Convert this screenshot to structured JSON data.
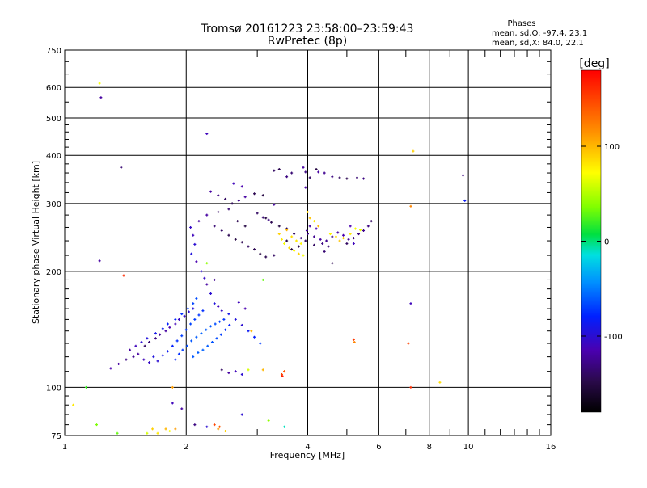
{
  "chart_data": {
    "type": "scatter",
    "title": "Tromsø 20161223 23:58:00–23:59:43",
    "subtitle": "RwPretec (8p)",
    "xlabel": "Frequency [MHz]",
    "ylabel": "Stationary phase Virtual Height [km]",
    "x_scale": "log",
    "y_scale": "log",
    "xlim": [
      1,
      16
    ],
    "ylim": [
      75,
      750
    ],
    "x_ticks": [
      1,
      2,
      4,
      6,
      8,
      10,
      16
    ],
    "x_ticks_labels": [
      "1",
      "2",
      "4",
      "6",
      "8",
      "10",
      "16"
    ],
    "x_minor_ticks": [
      3,
      5,
      7,
      9,
      11,
      12,
      13,
      14,
      15
    ],
    "y_ticks": [
      75,
      100,
      200,
      300,
      400,
      500,
      600,
      750
    ],
    "y_ticks_labels": [
      "75",
      "100",
      "200",
      "300",
      "400",
      "500",
      "600",
      "750"
    ],
    "grid": true,
    "stats": {
      "heading": "Phases",
      "line_o": "mean, sd,O: -97.4, 23.1",
      "line_x": "mean, sd,X: 84.0, 22.1"
    },
    "colorbar": {
      "label": "[deg]",
      "range": [
        -180,
        180
      ],
      "ticks": [
        100,
        0,
        -100
      ],
      "tick_labels": [
        "100",
        "0",
        "-100"
      ]
    },
    "points_note": "each point: [frequency MHz, virtual height km, phase deg]",
    "points": [
      [
        1.22,
        615,
        70
      ],
      [
        1.23,
        565,
        -120
      ],
      [
        1.38,
        372,
        -135
      ],
      [
        1.22,
        213,
        -120
      ],
      [
        1.4,
        195,
        160
      ],
      [
        2.25,
        455,
        -110
      ],
      [
        1.05,
        90,
        80
      ],
      [
        1.13,
        100,
        20
      ],
      [
        1.2,
        80,
        35
      ],
      [
        7.3,
        410,
        90
      ],
      [
        7.2,
        295,
        120
      ],
      [
        9.7,
        355,
        -130
      ],
      [
        9.8,
        305,
        -85
      ],
      [
        7.2,
        165,
        -110
      ],
      [
        7.1,
        130,
        150
      ],
      [
        7.2,
        100,
        160
      ],
      [
        8.5,
        103,
        85
      ],
      [
        2.05,
        260,
        -105
      ],
      [
        2.08,
        248,
        -110
      ],
      [
        2.1,
        235,
        -100
      ],
      [
        2.06,
        222,
        -95
      ],
      [
        2.12,
        212,
        -115
      ],
      [
        2.15,
        270,
        -120
      ],
      [
        2.18,
        200,
        -100
      ],
      [
        2.22,
        192,
        -105
      ],
      [
        2.25,
        280,
        -120
      ],
      [
        2.35,
        262,
        -135
      ],
      [
        2.45,
        255,
        -140
      ],
      [
        2.55,
        248,
        -145
      ],
      [
        2.65,
        242,
        -150
      ],
      [
        2.75,
        238,
        -145
      ],
      [
        2.85,
        232,
        -140
      ],
      [
        2.95,
        228,
        -145
      ],
      [
        3.05,
        222,
        -150
      ],
      [
        3.15,
        218,
        -145
      ],
      [
        3.3,
        220,
        -140
      ],
      [
        2.3,
        322,
        -120
      ],
      [
        2.4,
        315,
        -130
      ],
      [
        2.5,
        308,
        -140
      ],
      [
        2.6,
        300,
        -145
      ],
      [
        2.7,
        305,
        -125
      ],
      [
        2.8,
        312,
        -120
      ],
      [
        2.62,
        338,
        -110
      ],
      [
        2.75,
        332,
        -115
      ],
      [
        2.95,
        318,
        -145
      ],
      [
        3.1,
        315,
        -150
      ],
      [
        3.3,
        298,
        -120
      ],
      [
        2.4,
        285,
        -140
      ],
      [
        2.55,
        290,
        -135
      ],
      [
        2.68,
        270,
        -145
      ],
      [
        2.8,
        262,
        -150
      ],
      [
        3.15,
        275,
        -150
      ],
      [
        3.25,
        268,
        -145
      ],
      [
        3.4,
        262,
        -150
      ],
      [
        3.55,
        258,
        -145
      ],
      [
        3.7,
        250,
        -140
      ],
      [
        3.85,
        244,
        -130
      ],
      [
        3.95,
        240,
        -140
      ],
      [
        3.55,
        240,
        -150
      ],
      [
        3.65,
        228,
        -155
      ],
      [
        3.8,
        232,
        -150
      ],
      [
        3.3,
        365,
        -140
      ],
      [
        3.4,
        368,
        -145
      ],
      [
        3.55,
        352,
        -130
      ],
      [
        3.65,
        360,
        -135
      ],
      [
        3.9,
        372,
        -120
      ],
      [
        3.95,
        362,
        -130
      ],
      [
        4.05,
        350,
        -140
      ],
      [
        3.95,
        330,
        -120
      ],
      [
        4.25,
        362,
        -120
      ],
      [
        4.4,
        360,
        -125
      ],
      [
        4.6,
        352,
        -130
      ],
      [
        4.8,
        350,
        -140
      ],
      [
        5.0,
        348,
        -145
      ],
      [
        5.3,
        350,
        -135
      ],
      [
        5.5,
        348,
        -130
      ],
      [
        4.2,
        368,
        -150
      ],
      [
        3.4,
        250,
        90
      ],
      [
        3.45,
        242,
        80
      ],
      [
        3.5,
        236,
        70
      ],
      [
        3.6,
        230,
        85
      ],
      [
        3.7,
        226,
        75
      ],
      [
        3.8,
        222,
        90
      ],
      [
        3.9,
        220,
        70
      ],
      [
        3.55,
        256,
        100
      ],
      [
        3.65,
        246,
        85
      ],
      [
        3.75,
        240,
        80
      ],
      [
        3.85,
        236,
        75
      ],
      [
        4.0,
        285,
        90
      ],
      [
        4.05,
        275,
        95
      ],
      [
        4.15,
        270,
        80
      ],
      [
        4.25,
        262,
        100
      ],
      [
        4.55,
        250,
        75
      ],
      [
        4.7,
        246,
        85
      ],
      [
        4.9,
        244,
        90
      ],
      [
        5.1,
        250,
        80
      ],
      [
        5.25,
        258,
        70
      ],
      [
        5.4,
        256,
        65
      ],
      [
        4.8,
        240,
        95
      ],
      [
        4.0,
        250,
        -130
      ],
      [
        4.15,
        246,
        -125
      ],
      [
        4.3,
        242,
        -120
      ],
      [
        4.45,
        240,
        -125
      ],
      [
        4.6,
        246,
        -130
      ],
      [
        4.75,
        252,
        -120
      ],
      [
        4.9,
        248,
        -115
      ],
      [
        5.05,
        242,
        -125
      ],
      [
        5.2,
        244,
        -135
      ],
      [
        5.35,
        250,
        -130
      ],
      [
        5.5,
        255,
        -125
      ],
      [
        5.65,
        262,
        -130
      ],
      [
        5.75,
        270,
        -140
      ],
      [
        4.05,
        262,
        -120
      ],
      [
        4.2,
        258,
        -115
      ],
      [
        4.35,
        236,
        -130
      ],
      [
        4.5,
        232,
        -135
      ],
      [
        5.0,
        236,
        -140
      ],
      [
        4.6,
        210,
        -145
      ],
      [
        3.98,
        255,
        -120
      ],
      [
        4.15,
        234,
        -140
      ],
      [
        4.4,
        225,
        -135
      ],
      [
        5.1,
        262,
        -115
      ],
      [
        5.2,
        236,
        -110
      ],
      [
        3.0,
        283,
        -140
      ],
      [
        3.1,
        276,
        -135
      ],
      [
        3.2,
        272,
        -130
      ],
      [
        1.3,
        112,
        -115
      ],
      [
        1.36,
        115,
        -120
      ],
      [
        1.42,
        118,
        -130
      ],
      [
        1.48,
        120,
        -125
      ],
      [
        1.52,
        122,
        -120
      ],
      [
        1.57,
        118,
        -110
      ],
      [
        1.62,
        116,
        -105
      ],
      [
        1.66,
        120,
        -95
      ],
      [
        1.7,
        117,
        -100
      ],
      [
        1.75,
        121,
        -90
      ],
      [
        1.8,
        124,
        -85
      ],
      [
        1.85,
        128,
        -80
      ],
      [
        1.9,
        132,
        -75
      ],
      [
        1.95,
        136,
        -70
      ],
      [
        2.0,
        141,
        -72
      ],
      [
        2.05,
        146,
        -68
      ],
      [
        2.1,
        150,
        -70
      ],
      [
        2.15,
        154,
        -72
      ],
      [
        2.2,
        158,
        -75
      ],
      [
        1.45,
        125,
        -120
      ],
      [
        1.5,
        128,
        -110
      ],
      [
        1.55,
        131,
        -100
      ],
      [
        1.6,
        134,
        -95
      ],
      [
        1.68,
        138,
        -90
      ],
      [
        1.75,
        142,
        -85
      ],
      [
        1.8,
        146,
        -80
      ],
      [
        1.88,
        150,
        -78
      ],
      [
        1.95,
        155,
        -75
      ],
      [
        2.02,
        160,
        -70
      ],
      [
        2.08,
        165,
        -68
      ],
      [
        2.12,
        170,
        -65
      ],
      [
        1.58,
        128,
        -140
      ],
      [
        1.62,
        131,
        -135
      ],
      [
        1.68,
        134,
        -130
      ],
      [
        1.72,
        137,
        -125
      ],
      [
        1.78,
        140,
        -120
      ],
      [
        1.82,
        143,
        -115
      ],
      [
        1.88,
        146,
        -112
      ],
      [
        1.92,
        150,
        -108
      ],
      [
        1.98,
        153,
        -104
      ],
      [
        2.03,
        157,
        -100
      ],
      [
        2.08,
        160,
        -98
      ],
      [
        1.88,
        118,
        -80
      ],
      [
        1.92,
        122,
        -75
      ],
      [
        1.96,
        125,
        -70
      ],
      [
        2.01,
        128,
        -65
      ],
      [
        2.06,
        132,
        -62
      ],
      [
        2.12,
        135,
        -60
      ],
      [
        2.18,
        138,
        -58
      ],
      [
        2.24,
        141,
        -60
      ],
      [
        2.3,
        144,
        -62
      ],
      [
        2.36,
        146,
        -65
      ],
      [
        2.42,
        148,
        -68
      ],
      [
        2.48,
        150,
        -72
      ],
      [
        2.08,
        120,
        -62
      ],
      [
        2.14,
        123,
        -60
      ],
      [
        2.2,
        125,
        -58
      ],
      [
        2.26,
        128,
        -60
      ],
      [
        2.32,
        131,
        -63
      ],
      [
        2.38,
        134,
        -66
      ],
      [
        2.44,
        137,
        -70
      ],
      [
        2.5,
        141,
        -75
      ],
      [
        2.56,
        145,
        -80
      ],
      [
        2.3,
        175,
        -100
      ],
      [
        2.35,
        165,
        -95
      ],
      [
        2.4,
        162,
        -110
      ],
      [
        2.45,
        158,
        -105
      ],
      [
        2.55,
        155,
        -90
      ],
      [
        2.65,
        150,
        -95
      ],
      [
        2.75,
        145,
        -100
      ],
      [
        2.85,
        140,
        -85
      ],
      [
        2.95,
        135,
        -80
      ],
      [
        3.05,
        130,
        -70
      ],
      [
        2.7,
        166,
        -110
      ],
      [
        2.8,
        160,
        -115
      ],
      [
        2.25,
        185,
        -120
      ],
      [
        2.35,
        190,
        -125
      ],
      [
        2.45,
        111,
        -140
      ],
      [
        2.55,
        109,
        -120
      ],
      [
        2.65,
        110,
        -110
      ],
      [
        2.75,
        108,
        -100
      ],
      [
        2.85,
        111,
        60
      ],
      [
        3.1,
        111,
        100
      ],
      [
        3.45,
        108,
        150
      ],
      [
        3.46,
        107,
        165
      ],
      [
        3.5,
        110,
        140
      ],
      [
        5.2,
        133,
        155
      ],
      [
        5.22,
        131,
        120
      ],
      [
        1.85,
        91,
        -110
      ],
      [
        1.95,
        88,
        -120
      ],
      [
        2.1,
        80,
        -130
      ],
      [
        2.25,
        79,
        -100
      ],
      [
        2.35,
        80,
        150
      ],
      [
        2.4,
        78,
        110
      ],
      [
        2.42,
        79,
        140
      ],
      [
        2.5,
        77,
        90
      ],
      [
        1.65,
        78,
        90
      ],
      [
        1.7,
        76,
        80
      ],
      [
        1.78,
        78,
        100
      ],
      [
        1.82,
        77,
        70
      ],
      [
        1.88,
        78,
        110
      ],
      [
        1.6,
        76,
        60
      ],
      [
        2.75,
        85,
        -100
      ],
      [
        3.2,
        82,
        40
      ],
      [
        3.5,
        79,
        -10
      ],
      [
        1.35,
        76,
        30
      ],
      [
        1.85,
        100,
        110
      ],
      [
        2.9,
        140,
        100
      ],
      [
        3.1,
        190,
        30
      ],
      [
        2.25,
        210,
        40
      ]
    ]
  }
}
